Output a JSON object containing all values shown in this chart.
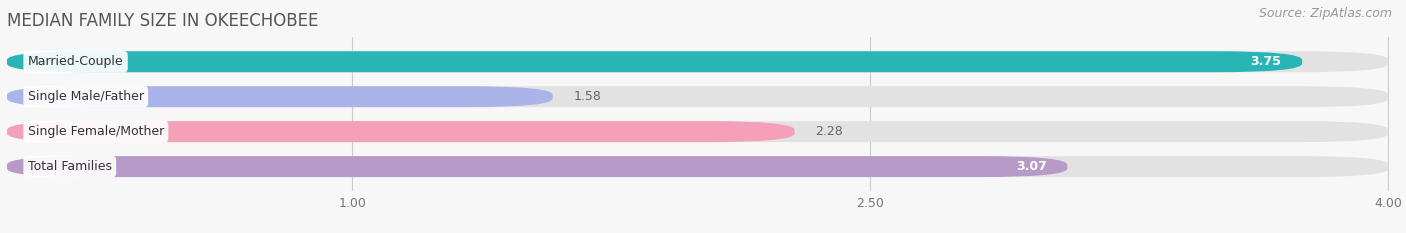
{
  "title": "MEDIAN FAMILY SIZE IN OKEECHOBEE",
  "source": "Source: ZipAtlas.com",
  "categories": [
    "Married-Couple",
    "Single Male/Father",
    "Single Female/Mother",
    "Total Families"
  ],
  "values": [
    3.75,
    1.58,
    2.28,
    3.07
  ],
  "bar_colors": [
    "#29b5b5",
    "#aab4e8",
    "#f4a0b8",
    "#b89ac8"
  ],
  "label_colors": [
    "white",
    "#555555",
    "#555555",
    "white"
  ],
  "x_min": 0.0,
  "x_max": 4.0,
  "x_ticks": [
    1.0,
    2.5,
    4.0
  ],
  "background_color": "#f7f7f7",
  "bar_bg_color": "#e2e2e2",
  "title_fontsize": 12,
  "source_fontsize": 9,
  "label_fontsize": 9,
  "value_fontsize": 9
}
